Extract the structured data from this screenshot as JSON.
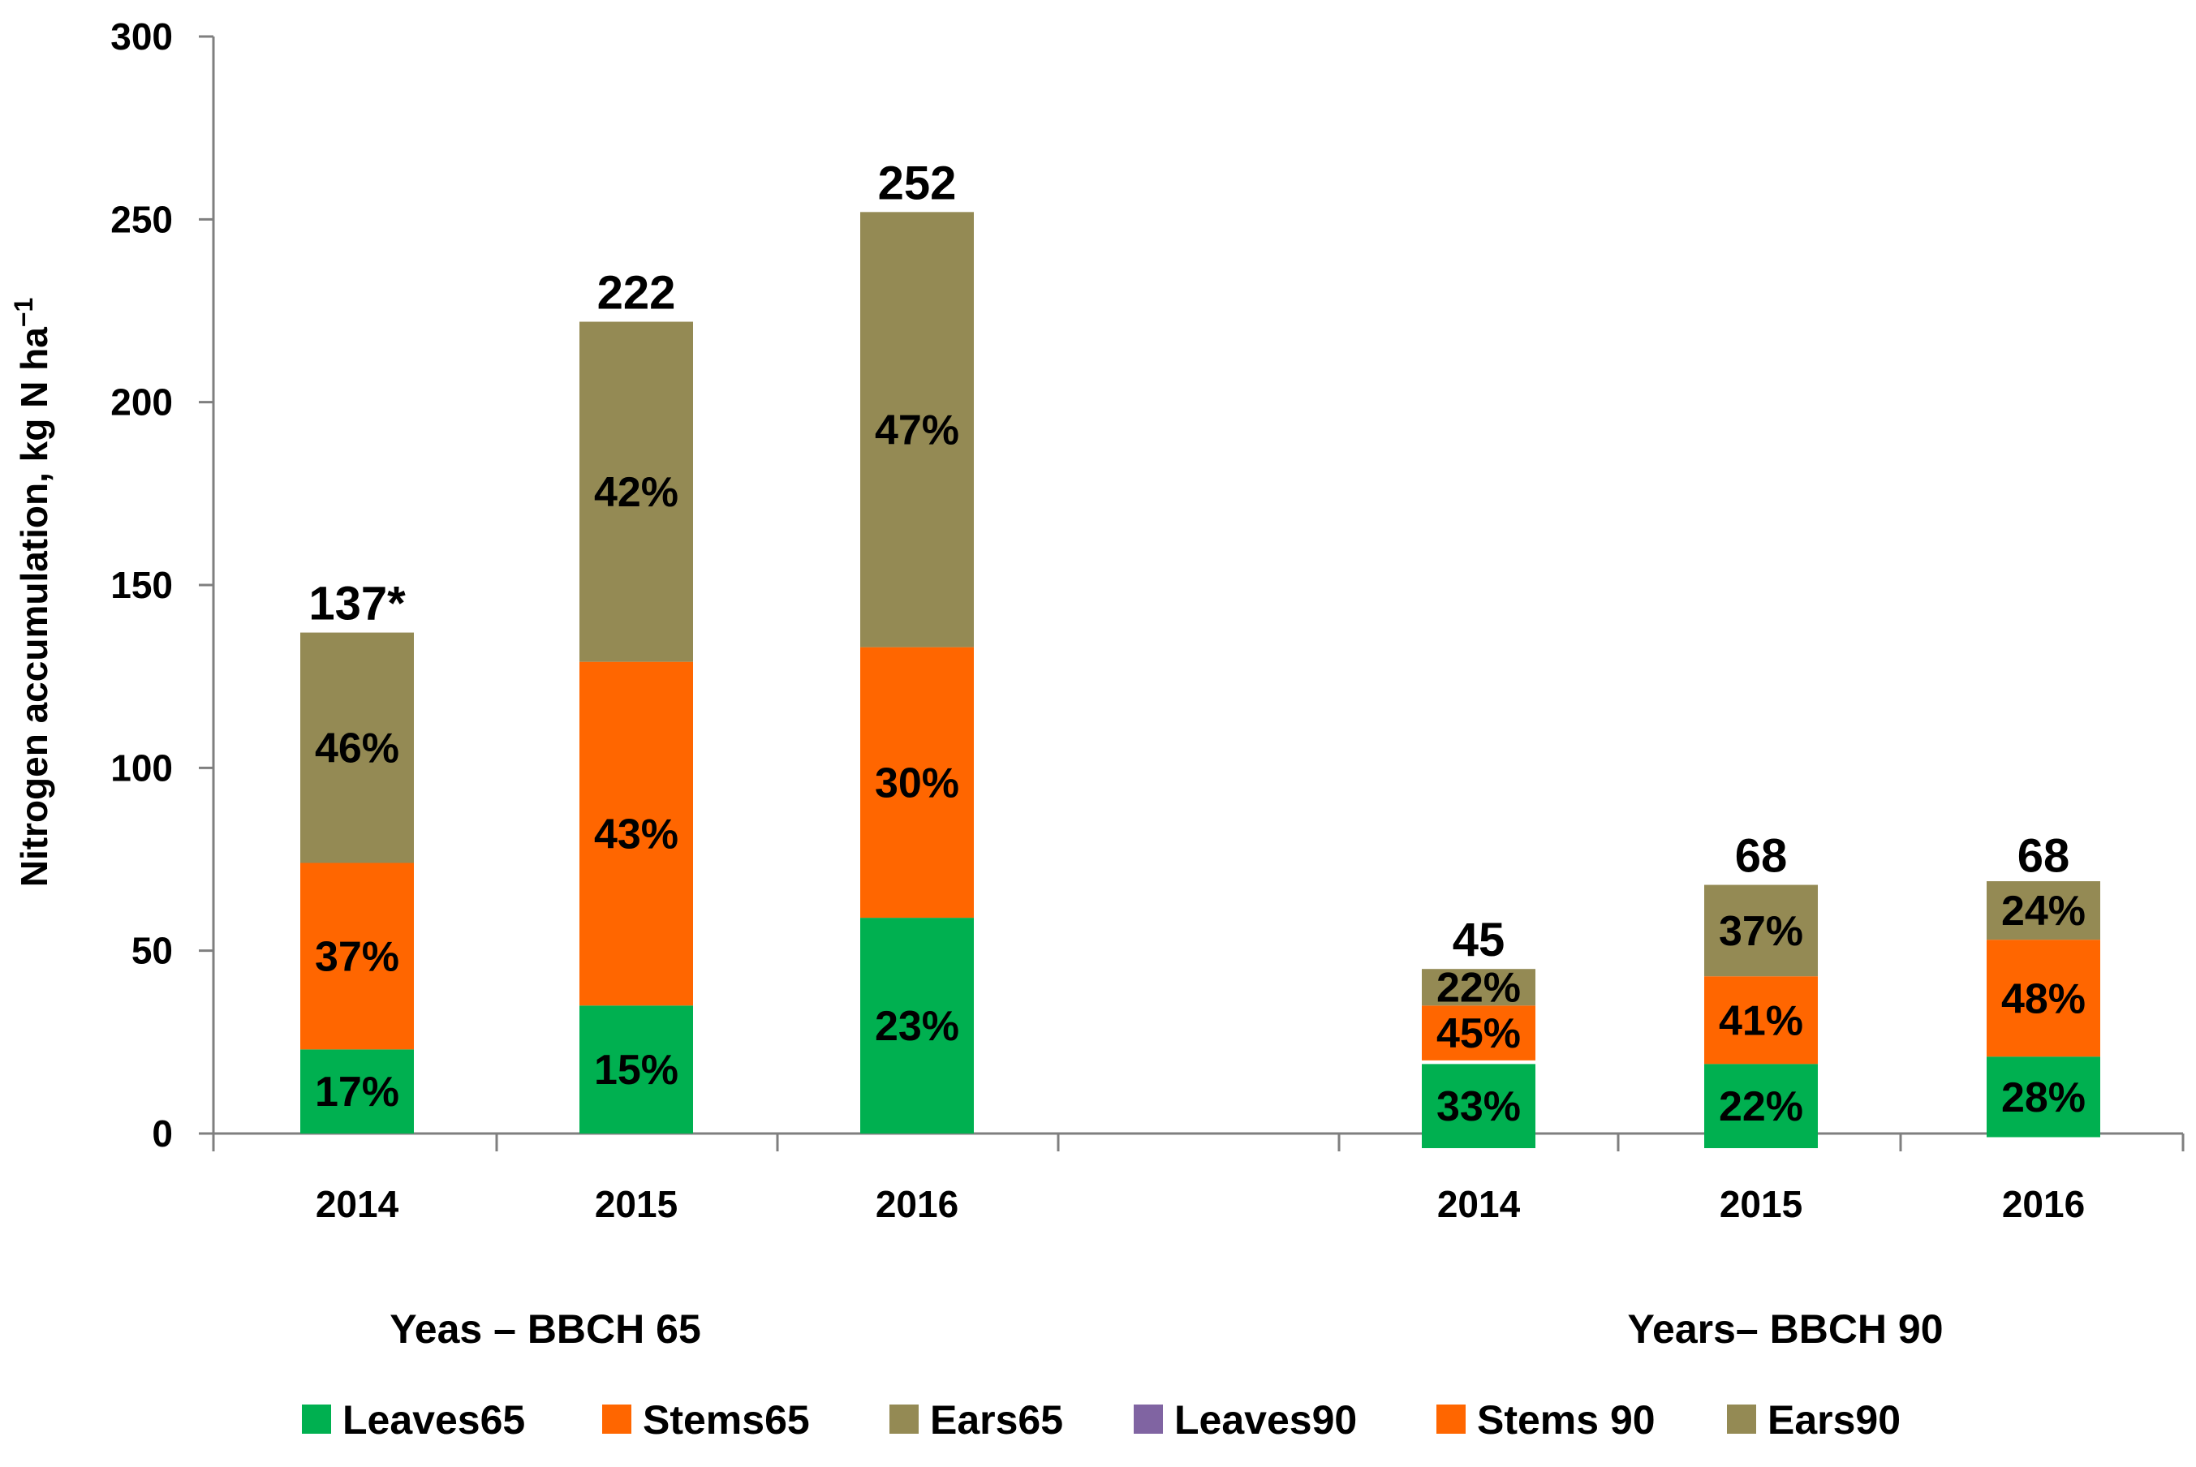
{
  "chart_data": {
    "type": "bar",
    "stacked": true,
    "ylabel": "Nitrogen accumulation, kg N ha",
    "ylabel_sup": "−1",
    "ylim": [
      0,
      300
    ],
    "yticks": [
      0,
      50,
      100,
      150,
      200,
      250,
      300
    ],
    "groups": [
      {
        "label": "Yeas – BBCH 65",
        "categories": [
          "2014",
          "2015",
          "2016"
        ]
      },
      {
        "label": "Years– BBCH 90",
        "categories": [
          "2014",
          "2015",
          "2016"
        ]
      }
    ],
    "bars": [
      {
        "group": 0,
        "category": "2014",
        "total_label": "137*",
        "total": 137,
        "segments": [
          {
            "series": "Leaves65",
            "value": 23,
            "label": "17%"
          },
          {
            "series": "Stems65",
            "value": 51,
            "label": "37%"
          },
          {
            "series": "Ears65",
            "value": 63,
            "label": "46%"
          }
        ]
      },
      {
        "group": 0,
        "category": "2015",
        "total_label": "222",
        "total": 222,
        "segments": [
          {
            "series": "Leaves65",
            "value": 35,
            "label": "15%"
          },
          {
            "series": "Stems65",
            "value": 94,
            "label": "43%"
          },
          {
            "series": "Ears65",
            "value": 93,
            "label": "42%"
          }
        ]
      },
      {
        "group": 0,
        "category": "2016",
        "total_label": "252",
        "total": 252,
        "segments": [
          {
            "series": "Leaves65",
            "value": 59,
            "label": "23%"
          },
          {
            "series": "Stems65",
            "value": 74,
            "label": "30%"
          },
          {
            "series": "Ears65",
            "value": 119,
            "label": "47%"
          }
        ]
      },
      {
        "group": 1,
        "category": "2014",
        "total_label": "45",
        "total": 45,
        "segments": [
          {
            "series": "Stems 90",
            "value": 15,
            "label": "45%",
            "base": 20
          },
          {
            "series": "Ears90",
            "value": 10,
            "label": "22%"
          },
          {
            "series": "Leaves65",
            "value": 23,
            "label": "33%",
            "base": -4
          }
        ]
      },
      {
        "group": 1,
        "category": "2015",
        "total_label": "68",
        "total": 68,
        "segments": [
          {
            "series": "Stems 90",
            "value": 24,
            "label": "41%",
            "base": 19
          },
          {
            "series": "Ears90",
            "value": 25,
            "label": "37%"
          },
          {
            "series": "Leaves65",
            "value": 23,
            "label": "22%",
            "base": -4
          }
        ]
      },
      {
        "group": 1,
        "category": "2016",
        "total_label": "68",
        "total": 68,
        "segments": [
          {
            "series": "Stems 90",
            "value": 32,
            "label": "48%",
            "base": 21
          },
          {
            "series": "Ears90",
            "value": 16,
            "label": "24%"
          },
          {
            "series": "Leaves65",
            "value": 22,
            "label": "28%",
            "base": -1
          }
        ]
      }
    ],
    "legend": [
      {
        "name": "Leaves65",
        "color": "#00B050"
      },
      {
        "name": "Stems65",
        "color": "#FF6600"
      },
      {
        "name": "Ears65",
        "color": "#948A54"
      },
      {
        "name": "Leaves90",
        "color": "#8064A2"
      },
      {
        "name": "Stems 90",
        "color": "#FF6600"
      },
      {
        "name": "Ears90",
        "color": "#948A54"
      }
    ],
    "legend_position": "bottom"
  }
}
